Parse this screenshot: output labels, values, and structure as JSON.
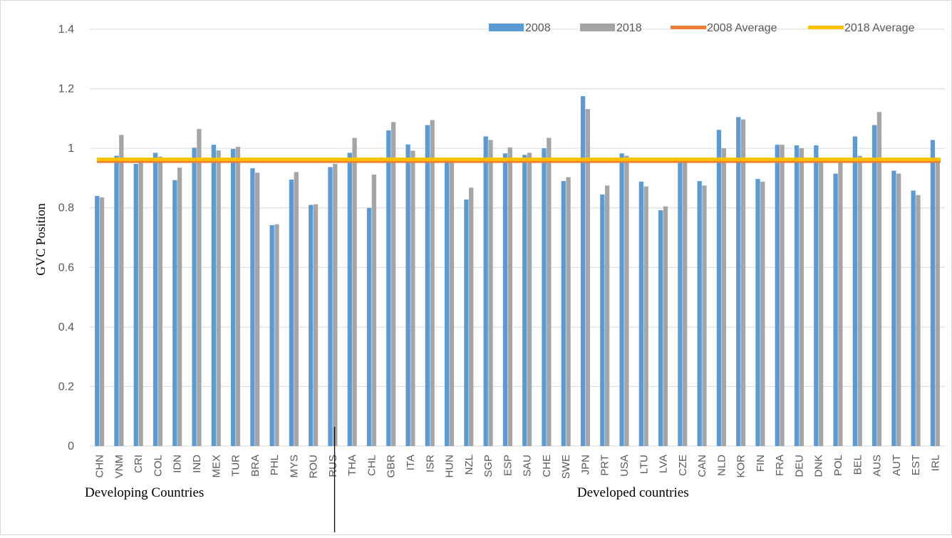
{
  "chart_data": {
    "type": "bar",
    "title": "",
    "xlabel": "",
    "ylabel": "GVC Position",
    "ylim": [
      0,
      1.4
    ],
    "yticks": [
      "0",
      "0.2",
      "0.4",
      "0.6",
      "0.8",
      "1",
      "1.2",
      "1.4"
    ],
    "grid": true,
    "legend_position": "top-right",
    "categories": [
      "CHN",
      "VNM",
      "CRI",
      "COL",
      "IDN",
      "IND",
      "MEX",
      "TUR",
      "BRA",
      "PHL",
      "MYS",
      "ROU",
      "RUS",
      "THA",
      "CHL",
      "GBR",
      "ITA",
      "ISR",
      "HUN",
      "NZL",
      "SGP",
      "ESP",
      "SAU",
      "CHE",
      "SWE",
      "JPN",
      "PRT",
      "USA",
      "LTU",
      "LVA",
      "CZE",
      "CAN",
      "NLD",
      "KOR",
      "FIN",
      "FRA",
      "DEU",
      "DNK",
      "POL",
      "BEL",
      "AUS",
      "AUT",
      "EST",
      "IRL"
    ],
    "series": [
      {
        "name": "2008",
        "color": "#5b9bd5",
        "values": [
          0.84,
          0.975,
          0.948,
          0.985,
          0.893,
          1.002,
          1.012,
          0.998,
          0.933,
          0.742,
          0.895,
          0.81,
          0.937,
          0.985,
          0.8,
          1.06,
          1.013,
          1.078,
          0.955,
          0.828,
          1.04,
          0.983,
          0.978,
          1.0,
          0.89,
          1.175,
          0.845,
          0.983,
          0.888,
          0.792,
          0.962,
          0.89,
          1.062,
          1.105,
          0.897,
          1.012,
          1.01,
          1.01,
          0.915,
          1.04,
          1.078,
          0.925,
          0.858,
          1.028
        ]
      },
      {
        "name": "2018",
        "color": "#a5a5a5",
        "values": [
          0.835,
          1.045,
          0.958,
          0.972,
          0.935,
          1.065,
          0.993,
          1.005,
          0.918,
          0.745,
          0.92,
          0.812,
          0.948,
          1.035,
          0.912,
          1.088,
          0.992,
          1.095,
          0.958,
          0.868,
          1.028,
          1.003,
          0.985,
          1.035,
          0.903,
          1.132,
          0.875,
          0.975,
          0.872,
          0.805,
          0.955,
          0.875,
          1.0,
          1.097,
          0.888,
          1.012,
          1.0,
          0.958,
          0.955,
          0.975,
          1.122,
          0.915,
          0.843,
          0.958
        ]
      }
    ],
    "reference_lines": [
      {
        "name": "2008 Average",
        "value": 0.957,
        "color": "#ed7d31"
      },
      {
        "name": "2018 Average",
        "value": 0.963,
        "color": "#ffc000"
      }
    ],
    "group_labels": [
      {
        "text": "Developing Countries",
        "start_category": "CHN",
        "end_category": "RUS"
      },
      {
        "text": "Developed countries",
        "start_category": "THA",
        "end_category": "IRL"
      }
    ]
  }
}
